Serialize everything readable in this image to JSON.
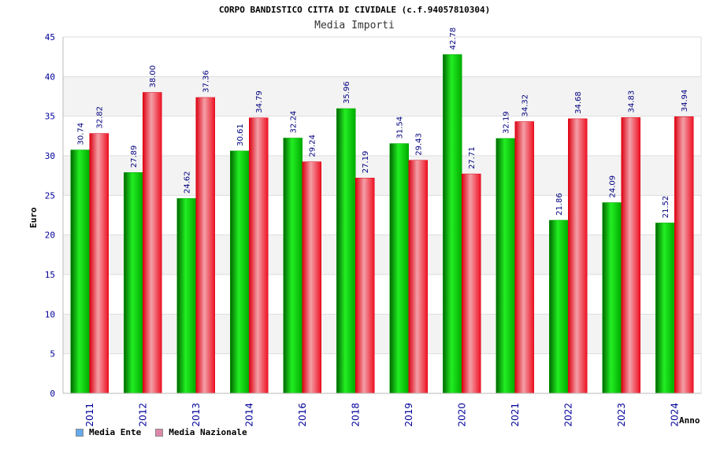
{
  "chart_data": {
    "type": "bar",
    "title": "CORPO BANDISTICO CITTA DI CIVIDALE (c.f.94057810304)",
    "subtitle": "Media Importi",
    "xlabel": "Anno",
    "ylabel": "Euro",
    "ylim": [
      0,
      45
    ],
    "yticks": [
      0,
      5,
      10,
      15,
      20,
      25,
      30,
      35,
      40,
      45
    ],
    "categories": [
      "2011",
      "2012",
      "2013",
      "2014",
      "2016",
      "2018",
      "2019",
      "2020",
      "2021",
      "2022",
      "2023",
      "2024"
    ],
    "series": [
      {
        "name": "Media Ente",
        "color": "#00cc00",
        "legend_color": "#66aaee",
        "values": [
          30.74,
          27.89,
          24.62,
          30.61,
          32.24,
          35.96,
          31.54,
          42.78,
          32.19,
          21.86,
          24.09,
          21.52
        ],
        "labels": [
          "30.74",
          "27.89",
          "24.62",
          "30.61",
          "32.24",
          "35.96",
          "31.54",
          "42.78",
          "32.19",
          "21.86",
          "24.09",
          "21.52"
        ]
      },
      {
        "name": "Media Nazionale",
        "color": "#ee1122",
        "legend_color": "#dd88aa",
        "values": [
          32.82,
          38.0,
          37.36,
          34.79,
          29.24,
          27.19,
          29.43,
          27.71,
          34.32,
          34.68,
          34.83,
          34.94
        ],
        "labels": [
          "32.82",
          "38.00",
          "37.36",
          "34.79",
          "29.24",
          "27.19",
          "29.43",
          "27.71",
          "34.32",
          "34.68",
          "34.83",
          "34.94"
        ]
      }
    ],
    "grid": true,
    "legend_position": "bottom-left"
  }
}
